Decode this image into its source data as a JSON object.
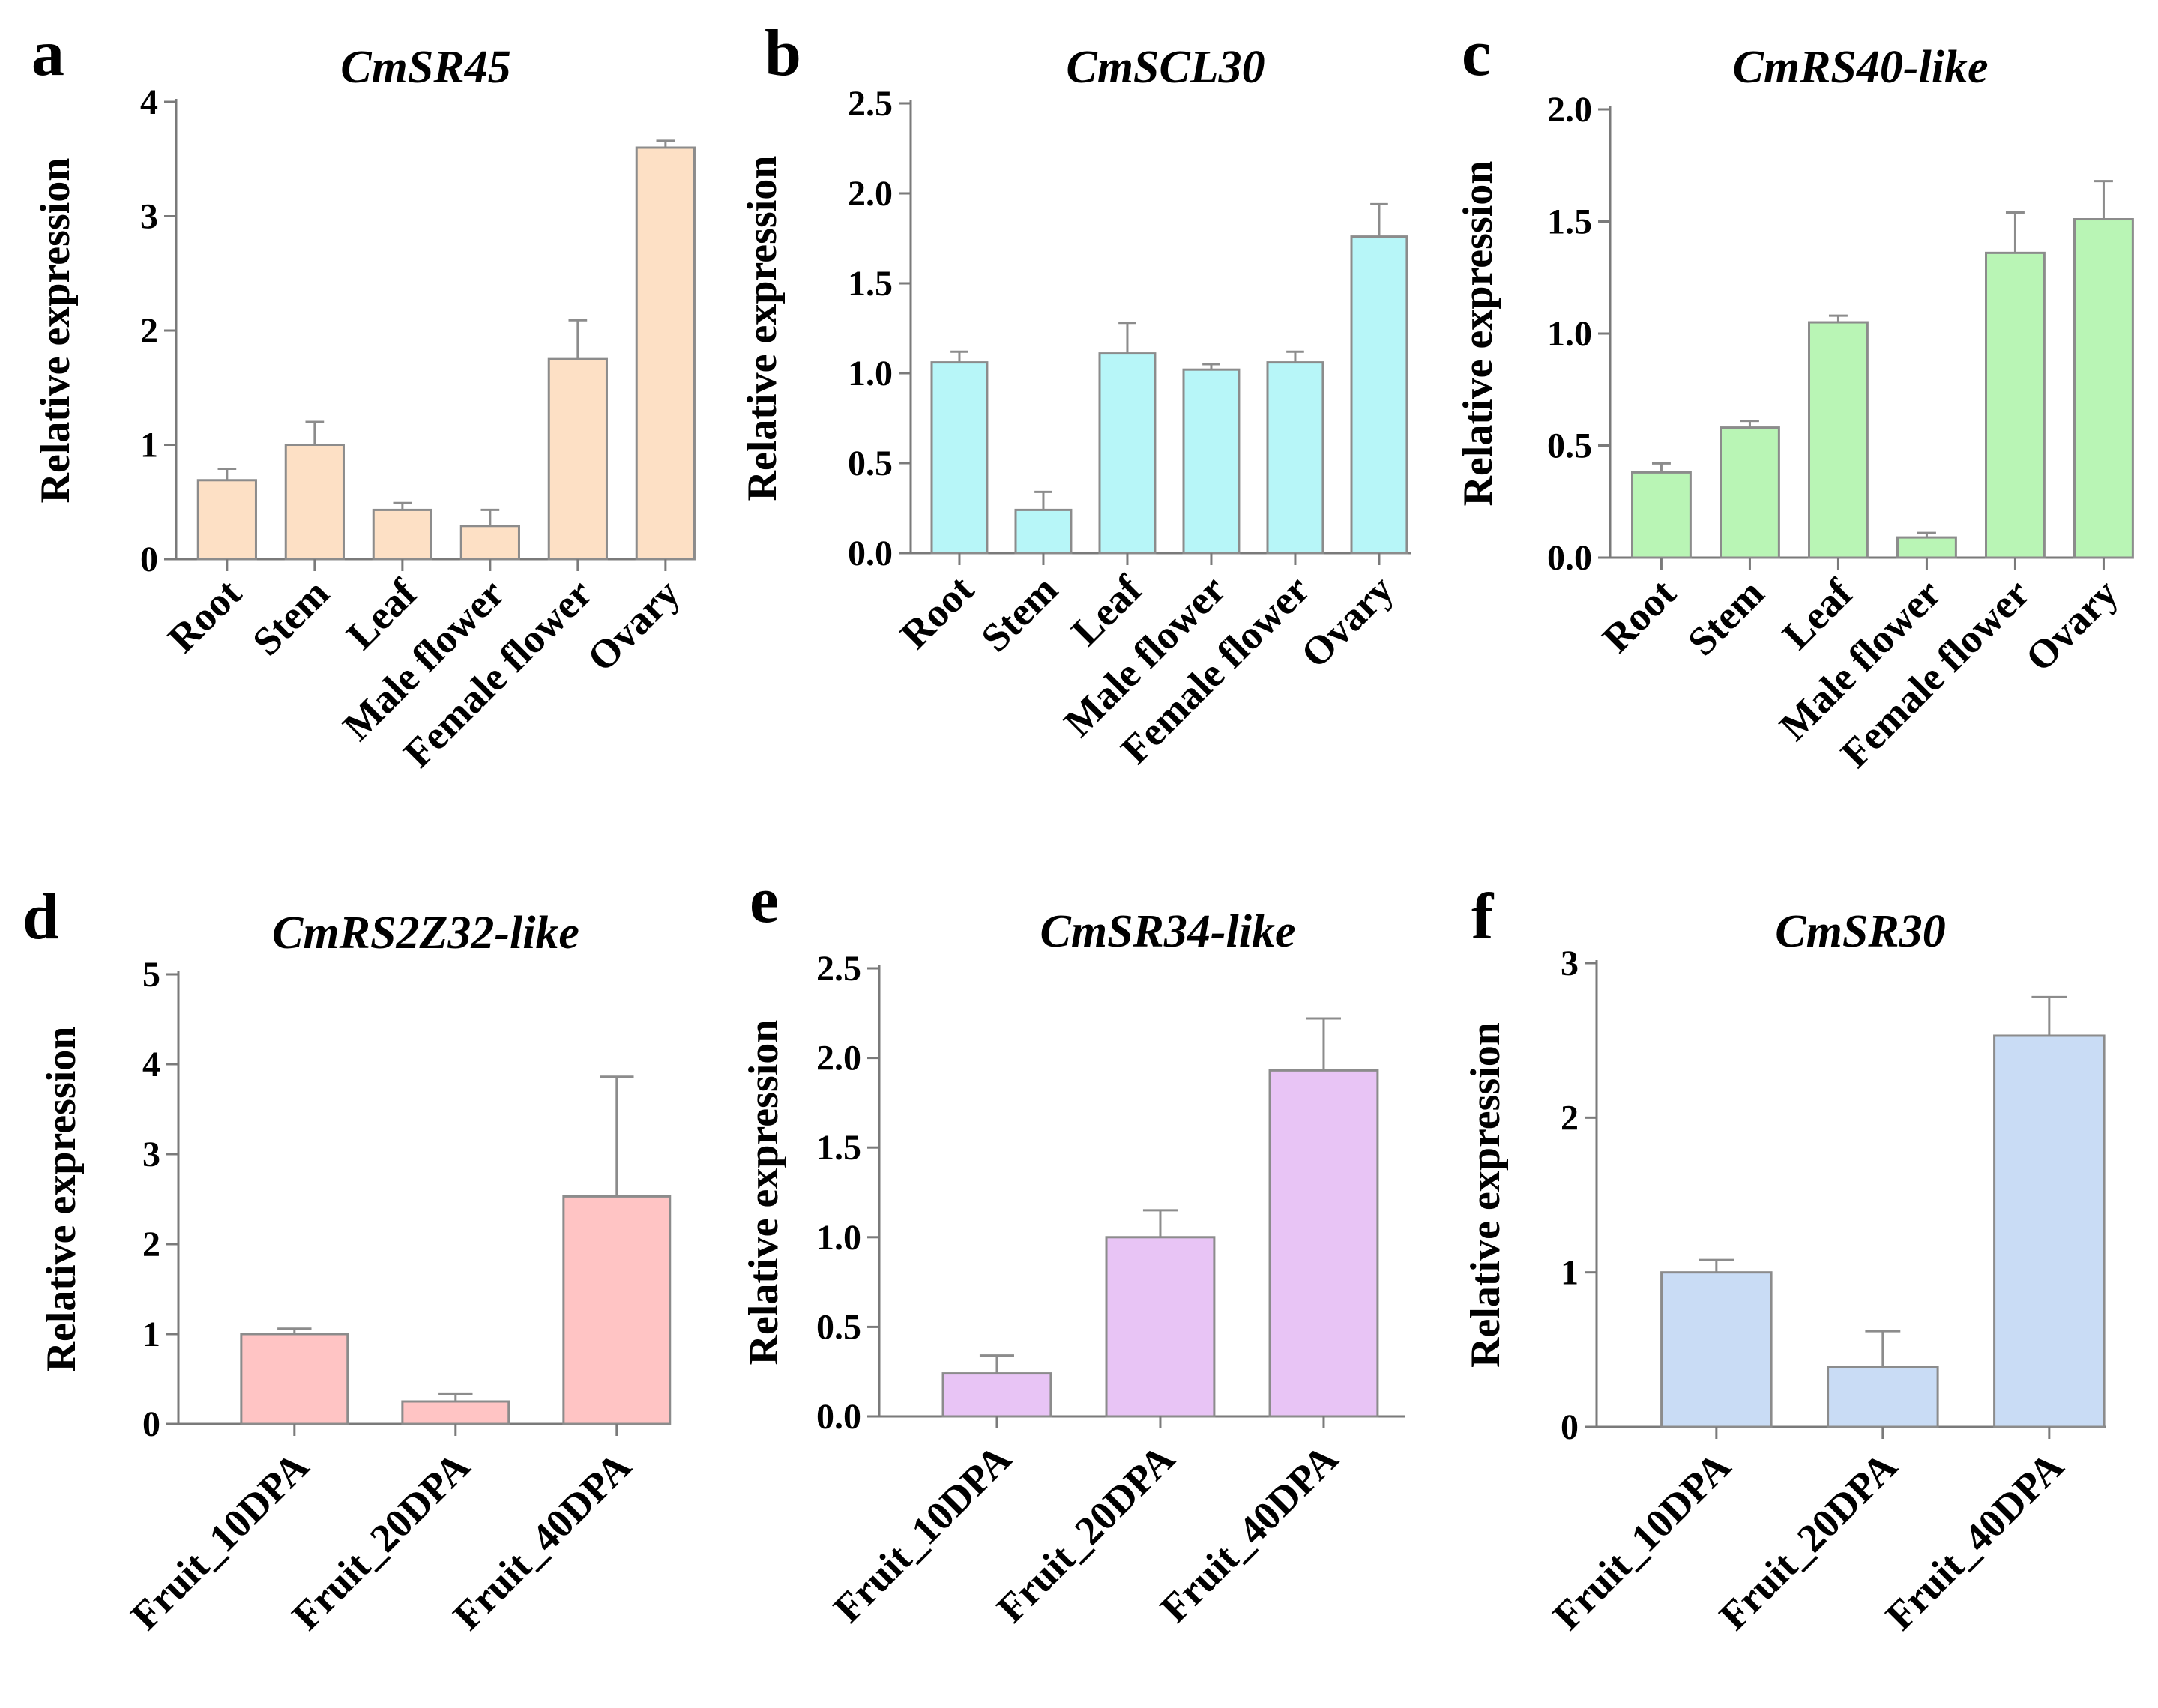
{
  "figure": {
    "ylabel": "Relative expression"
  },
  "chart_data": [
    {
      "panel": "a",
      "type": "bar",
      "title": "CmSR45",
      "ylabel": "Relative expression",
      "categories": [
        "Root",
        "Stem",
        "Leaf",
        "Male flower",
        "Female flower",
        "Ovary"
      ],
      "values": [
        0.69,
        1.0,
        0.43,
        0.29,
        1.75,
        3.6
      ],
      "errors": [
        0.1,
        0.2,
        0.06,
        0.14,
        0.34,
        0.06
      ],
      "ylim": [
        0,
        4
      ],
      "yticks": [
        0,
        1,
        2,
        3,
        4
      ],
      "ytick_labels": [
        "0",
        "1",
        "2",
        "3",
        "4"
      ],
      "color": "#fde0c5"
    },
    {
      "panel": "b",
      "type": "bar",
      "title": "CmSCL30",
      "ylabel": "Relative expression",
      "categories": [
        "Root",
        "Stem",
        "Leaf",
        "Male flower",
        "Female flower",
        "Ovary"
      ],
      "values": [
        1.06,
        0.24,
        1.11,
        1.02,
        1.06,
        1.76
      ],
      "errors": [
        0.06,
        0.1,
        0.17,
        0.03,
        0.06,
        0.18
      ],
      "ylim": [
        0,
        2.5
      ],
      "yticks": [
        0,
        0.5,
        1,
        1.5,
        2,
        2.5
      ],
      "ytick_labels": [
        "0.0",
        "0.5",
        "1.0",
        "1.5",
        "2.0",
        "2.5"
      ],
      "color": "#b7f6f8"
    },
    {
      "panel": "c",
      "type": "bar",
      "title": "CmRS40-like",
      "ylabel": "Relative expression",
      "categories": [
        "Root",
        "Stem",
        "Leaf",
        "Male flower",
        "Female flower",
        "Ovary"
      ],
      "values": [
        0.38,
        0.58,
        1.05,
        0.09,
        1.36,
        1.51
      ],
      "errors": [
        0.04,
        0.03,
        0.03,
        0.02,
        0.18,
        0.17
      ],
      "ylim": [
        0,
        2
      ],
      "yticks": [
        0,
        0.5,
        1,
        1.5,
        2
      ],
      "ytick_labels": [
        "0.0",
        "0.5",
        "1.0",
        "1.5",
        "2.0"
      ],
      "color": "#b9f5b5"
    },
    {
      "panel": "d",
      "type": "bar",
      "title": "CmRS2Z32-like",
      "ylabel": "Relative expression",
      "categories": [
        "Fruit_10DPA",
        "Fruit_20DPA",
        "Fruit_40DPA"
      ],
      "values": [
        1.0,
        0.25,
        2.53
      ],
      "errors": [
        0.06,
        0.08,
        1.33
      ],
      "ylim": [
        0,
        5
      ],
      "yticks": [
        0,
        1,
        2,
        3,
        4,
        5
      ],
      "ytick_labels": [
        "0",
        "1",
        "2",
        "3",
        "4",
        "5"
      ],
      "color": "#ffc4c4"
    },
    {
      "panel": "e",
      "type": "bar",
      "title": "CmSR34-like",
      "ylabel": "Relative expression",
      "categories": [
        "Fruit_10DPA",
        "Fruit_20DPA",
        "Fruit_40DPA"
      ],
      "values": [
        0.24,
        1.0,
        1.93
      ],
      "errors": [
        0.1,
        0.15,
        0.29
      ],
      "ylim": [
        0,
        2.5
      ],
      "yticks": [
        0,
        0.5,
        1,
        1.5,
        2,
        2.5
      ],
      "ytick_labels": [
        "0.0",
        "0.5",
        "1.0",
        "1.5",
        "2.0",
        "2.5"
      ],
      "color": "#e8c4f5"
    },
    {
      "panel": "f",
      "type": "bar",
      "title": "CmSR30",
      "ylabel": "Relative expression",
      "categories": [
        "Fruit_10DPA",
        "Fruit_20DPA",
        "Fruit_40DPA"
      ],
      "values": [
        1.0,
        0.39,
        2.53
      ],
      "errors": [
        0.08,
        0.23,
        0.25
      ],
      "ylim": [
        0,
        3
      ],
      "yticks": [
        0,
        1,
        2,
        3
      ],
      "ytick_labels": [
        "0",
        "1",
        "2",
        "3"
      ],
      "color": "#c9dcf5"
    }
  ]
}
